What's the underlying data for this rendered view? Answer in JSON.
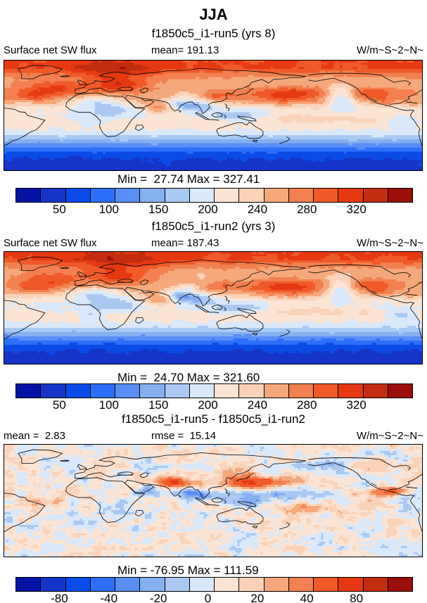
{
  "title": "JJA",
  "colors": {
    "background": "#ffffff",
    "coastline": "#000000",
    "frame": "#000000"
  },
  "panels": [
    {
      "subtitle": "f1850c5_i1-run5 (yrs 8)",
      "left_label": "Surface net SW flux",
      "center_label": "mean= 191.13",
      "units_label": "W/m~S~2~N~",
      "minmax": "Min =  27.74 Max = 327.41",
      "ticks": [
        "50",
        "100",
        "150",
        "200",
        "240",
        "280",
        "320"
      ]
    },
    {
      "subtitle": "f1850c5_i1-run2 (yrs 3)",
      "left_label": "Surface net SW flux",
      "center_label": "mean= 187.43",
      "units_label": "W/m~S~2~N~",
      "minmax": "Min =  24.70 Max = 321.60",
      "ticks": [
        "50",
        "100",
        "150",
        "200",
        "240",
        "280",
        "320"
      ]
    },
    {
      "subtitle": "f1850c5_i1-run5 - f1850c5_i1-run2",
      "left_label": "mean =  2.83",
      "center_label": "rmse =  15.14",
      "units_label": "W/m~S~2~N~",
      "minmax": "Min = -76.95 Max = 111.59",
      "ticks": [
        "-80",
        "-40",
        "-20",
        "0",
        "20",
        "40",
        "80"
      ]
    }
  ],
  "chart_data": {
    "type": "heatmap",
    "subtype": "filled-contour global lat-lon maps with discrete labelbar",
    "season": "JJA",
    "variable": "Surface net SW flux",
    "units": "W/m~S~2~N~",
    "projection": {
      "lon_min": -70,
      "lon_max": 290,
      "lat_min": -90,
      "lat_max": 90
    },
    "palette": [
      "#0413A6",
      "#1635C8",
      "#0B4BE8",
      "#2E6FFA",
      "#5A8EF5",
      "#86AFF0",
      "#A9C9F2",
      "#D9E8FA",
      "#FBE4D4",
      "#F9D2B8",
      "#F5A87C",
      "#F28050",
      "#EF5A28",
      "#E63912",
      "#C22D10",
      "#9C0E08"
    ],
    "tick_positions": [
      2,
      4,
      6,
      8,
      10,
      12,
      14
    ],
    "colorbar_segments": 16,
    "panels": [
      {
        "case": "f1850c5_i1-run5",
        "years_label": "yrs 8",
        "mean": 191.13,
        "min": 27.74,
        "max": 327.41,
        "levels": [
          25,
          50,
          75,
          100,
          125,
          150,
          175,
          200,
          220,
          240,
          260,
          280,
          300,
          320,
          340
        ],
        "tick_values": [
          50,
          100,
          150,
          200,
          240,
          280,
          320
        ],
        "field": {
          "seed": 1,
          "noise_amp": [
            6,
            4
          ],
          "noise_scale": [
            10,
            4
          ],
          "zonal": [
            [
              90,
              300
            ],
            [
              78,
              302
            ],
            [
              68,
              272
            ],
            [
              58,
              250
            ],
            [
              48,
              246
            ],
            [
              40,
              252
            ],
            [
              32,
              256
            ],
            [
              24,
              240
            ],
            [
              16,
              220
            ],
            [
              8,
              205
            ],
            [
              0,
              198
            ],
            [
              -8,
              208
            ],
            [
              -16,
              212
            ],
            [
              -24,
              200
            ],
            [
              -32,
              178
            ],
            [
              -40,
              148
            ],
            [
              -48,
              118
            ],
            [
              -56,
              88
            ],
            [
              -64,
              62
            ],
            [
              -72,
              48
            ],
            [
              -90,
              40
            ]
          ],
          "blobs": [
            [
              -30,
              45,
              20,
              9,
              55
            ],
            [
              -45,
              30,
              13,
              7,
              30
            ],
            [
              25,
              72,
              26,
              14,
              40
            ],
            [
              28,
              50,
              18,
              8,
              58
            ],
            [
              8,
              23,
              13,
              7,
              -52
            ],
            [
              22,
              8,
              15,
              8,
              -42
            ],
            [
              64,
              12,
              10,
              7,
              58
            ],
            [
              80,
              20,
              9,
              7,
              -62
            ],
            [
              90,
              17,
              7,
              6,
              -40
            ],
            [
              102,
              14,
              9,
              7,
              -48
            ],
            [
              88,
              33,
              7,
              4,
              -35
            ],
            [
              115,
              33,
              9,
              6,
              28
            ],
            [
              172,
              32,
              26,
              11,
              50
            ],
            [
              178,
              35,
              12,
              6,
              16
            ],
            [
              220,
              30,
              8,
              13,
              -70
            ],
            [
              248,
              37,
              15,
              8,
              40
            ],
            [
              258,
              24,
              7,
              5,
              30
            ],
            [
              195,
              -4,
              48,
              6,
              28
            ],
            [
              138,
              0,
              14,
              7,
              -38
            ],
            [
              120,
              -2,
              8,
              5,
              -32
            ],
            [
              272,
              -12,
              9,
              7,
              -35
            ],
            [
              5,
              -12,
              7,
              5,
              -26
            ],
            [
              282,
              20,
              10,
              6,
              20
            ]
          ]
        }
      },
      {
        "case": "f1850c5_i1-run2",
        "years_label": "yrs 3",
        "mean": 187.43,
        "min": 24.7,
        "max": 321.6,
        "levels": [
          25,
          50,
          75,
          100,
          125,
          150,
          175,
          200,
          220,
          240,
          260,
          280,
          300,
          320,
          340
        ],
        "tick_values": [
          50,
          100,
          150,
          200,
          240,
          280,
          320
        ],
        "field": {
          "seed": 2,
          "noise_amp": [
            6,
            4
          ],
          "noise_scale": [
            10,
            4
          ],
          "zonal": [
            [
              90,
              304
            ],
            [
              78,
              300
            ],
            [
              68,
              268
            ],
            [
              58,
              246
            ],
            [
              48,
              243
            ],
            [
              40,
              250
            ],
            [
              32,
              252
            ],
            [
              24,
              236
            ],
            [
              16,
              216
            ],
            [
              8,
              200
            ],
            [
              0,
              194
            ],
            [
              -8,
              206
            ],
            [
              -16,
              210
            ],
            [
              -24,
              198
            ],
            [
              -32,
              176
            ],
            [
              -40,
              146
            ],
            [
              -48,
              114
            ],
            [
              -56,
              84
            ],
            [
              -64,
              58
            ],
            [
              -72,
              46
            ],
            [
              -90,
              38
            ]
          ],
          "blobs": [
            [
              -32,
              46,
              20,
              9,
              52
            ],
            [
              -45,
              30,
              13,
              7,
              28
            ],
            [
              25,
              72,
              26,
              14,
              42
            ],
            [
              30,
              50,
              18,
              8,
              60
            ],
            [
              8,
              23,
              13,
              7,
              -55
            ],
            [
              22,
              7,
              15,
              8,
              -46
            ],
            [
              64,
              12,
              10,
              7,
              55
            ],
            [
              80,
              20,
              9,
              7,
              -70
            ],
            [
              90,
              17,
              7,
              6,
              -44
            ],
            [
              102,
              14,
              9,
              7,
              -50
            ],
            [
              88,
              33,
              7,
              4,
              -38
            ],
            [
              115,
              33,
              9,
              6,
              26
            ],
            [
              170,
              31,
              26,
              11,
              50
            ],
            [
              176,
              34,
              12,
              6,
              16
            ],
            [
              220,
              30,
              8,
              13,
              -68
            ],
            [
              248,
              37,
              15,
              8,
              42
            ],
            [
              258,
              24,
              7,
              5,
              30
            ],
            [
              195,
              -4,
              48,
              6,
              26
            ],
            [
              138,
              0,
              14,
              7,
              -40
            ],
            [
              120,
              -2,
              8,
              5,
              -34
            ],
            [
              272,
              -12,
              9,
              7,
              -36
            ],
            [
              5,
              -12,
              7,
              5,
              -27
            ],
            [
              282,
              20,
              10,
              6,
              20
            ]
          ]
        }
      },
      {
        "case": "f1850c5_i1-run5 - f1850c5_i1-run2",
        "mean": 2.83,
        "rmse": 15.14,
        "min": -76.95,
        "max": 111.59,
        "levels": [
          -100,
          -80,
          -60,
          -40,
          -30,
          -20,
          -10,
          0,
          10,
          20,
          30,
          40,
          60,
          80,
          100
        ],
        "tick_values": [
          -80,
          -40,
          -20,
          0,
          20,
          40,
          80
        ],
        "field": {
          "seed": 3,
          "noise_amp": [
            13,
            8
          ],
          "noise_scale": [
            11,
            4
          ],
          "zonal": [
            [
              90,
              2
            ],
            [
              -90,
              1
            ]
          ],
          "blobs": [
            [
              140,
              28,
              20,
              6,
              42
            ],
            [
              162,
              31,
              18,
              7,
              26
            ],
            [
              150,
              10,
              40,
              5,
              -24
            ],
            [
              250,
              12,
              16,
              5,
              32
            ],
            [
              268,
              17,
              9,
              4,
              26
            ],
            [
              72,
              30,
              8,
              6,
              44
            ],
            [
              86,
              28,
              11,
              5,
              26
            ],
            [
              55,
              15,
              6,
              8,
              -30
            ],
            [
              90,
              15,
              6,
              5,
              -26
            ],
            [
              100,
              5,
              9,
              5,
              -20
            ],
            [
              135,
              -3,
              13,
              6,
              -26
            ],
            [
              185,
              -15,
              20,
              8,
              20
            ],
            [
              -12,
              20,
              7,
              5,
              24
            ],
            [
              5,
              3,
              8,
              5,
              20
            ],
            [
              25,
              -10,
              11,
              6,
              -14
            ],
            [
              125,
              45,
              11,
              8,
              24
            ],
            [
              205,
              60,
              18,
              8,
              -18
            ],
            [
              255,
              55,
              16,
              7,
              20
            ],
            [
              -40,
              -3,
              10,
              5,
              16
            ]
          ]
        }
      }
    ]
  }
}
